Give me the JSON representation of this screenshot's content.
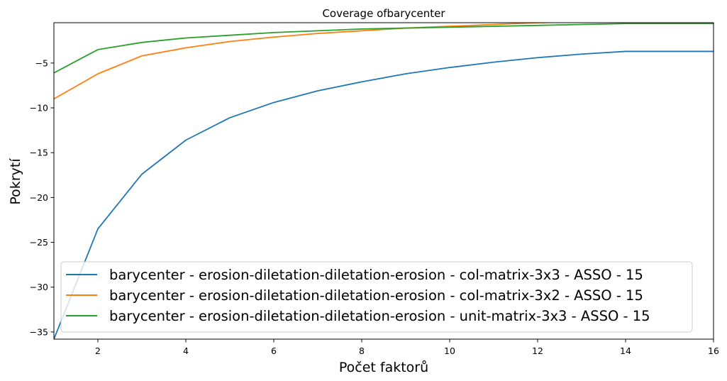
{
  "chart_data": {
    "type": "line",
    "title": "Coverage ofbarycenter",
    "xlabel": "Počet faktorů",
    "ylabel": "Pokrytí",
    "xlim": [
      1,
      16
    ],
    "ylim": [
      -35.8,
      -0.5
    ],
    "x_ticks": [
      2,
      4,
      6,
      8,
      10,
      12,
      14,
      16
    ],
    "y_ticks": [
      -5,
      -10,
      -15,
      -20,
      -25,
      -30,
      -35
    ],
    "x_tick_labels": [
      "2",
      "4",
      "6",
      "8",
      "10",
      "12",
      "14",
      "16"
    ],
    "y_tick_labels": [
      "−5",
      "−10",
      "−15",
      "−20",
      "−25",
      "−30",
      "−35"
    ],
    "grid": false,
    "legend_position": "lower-center",
    "x": [
      1,
      2,
      3,
      4,
      5,
      6,
      7,
      8,
      9,
      10,
      11,
      12,
      13,
      14,
      15,
      16
    ],
    "series": [
      {
        "name": "barycenter - erosion-diletation-diletation-erosion - col-matrix-3x3 - ASSO - 15",
        "color": "#1f77b4",
        "values": [
          -35.8,
          -23.5,
          -17.4,
          -13.6,
          -11.1,
          -9.4,
          -8.1,
          -7.1,
          -6.2,
          -5.5,
          -4.9,
          -4.4,
          -4.0,
          -3.7,
          -3.7,
          -3.7
        ]
      },
      {
        "name": "barycenter - erosion-diletation-diletation-erosion - col-matrix-3x2 - ASSO - 15",
        "color": "#ff7f0e",
        "values": [
          -9.0,
          -6.2,
          -4.2,
          -3.3,
          -2.6,
          -2.1,
          -1.7,
          -1.4,
          -1.1,
          -0.9,
          -0.7,
          -0.5,
          -0.4,
          -0.3,
          -0.25,
          -0.2
        ]
      },
      {
        "name": "barycenter - erosion-diletation-diletation-erosion - unit-matrix-3x3 - ASSO - 15",
        "color": "#2ca02c",
        "values": [
          -6.1,
          -3.5,
          -2.7,
          -2.2,
          -1.9,
          -1.6,
          -1.4,
          -1.2,
          -1.1,
          -1.0,
          -0.9,
          -0.8,
          -0.7,
          -0.6,
          -0.6,
          -0.6
        ]
      }
    ]
  }
}
